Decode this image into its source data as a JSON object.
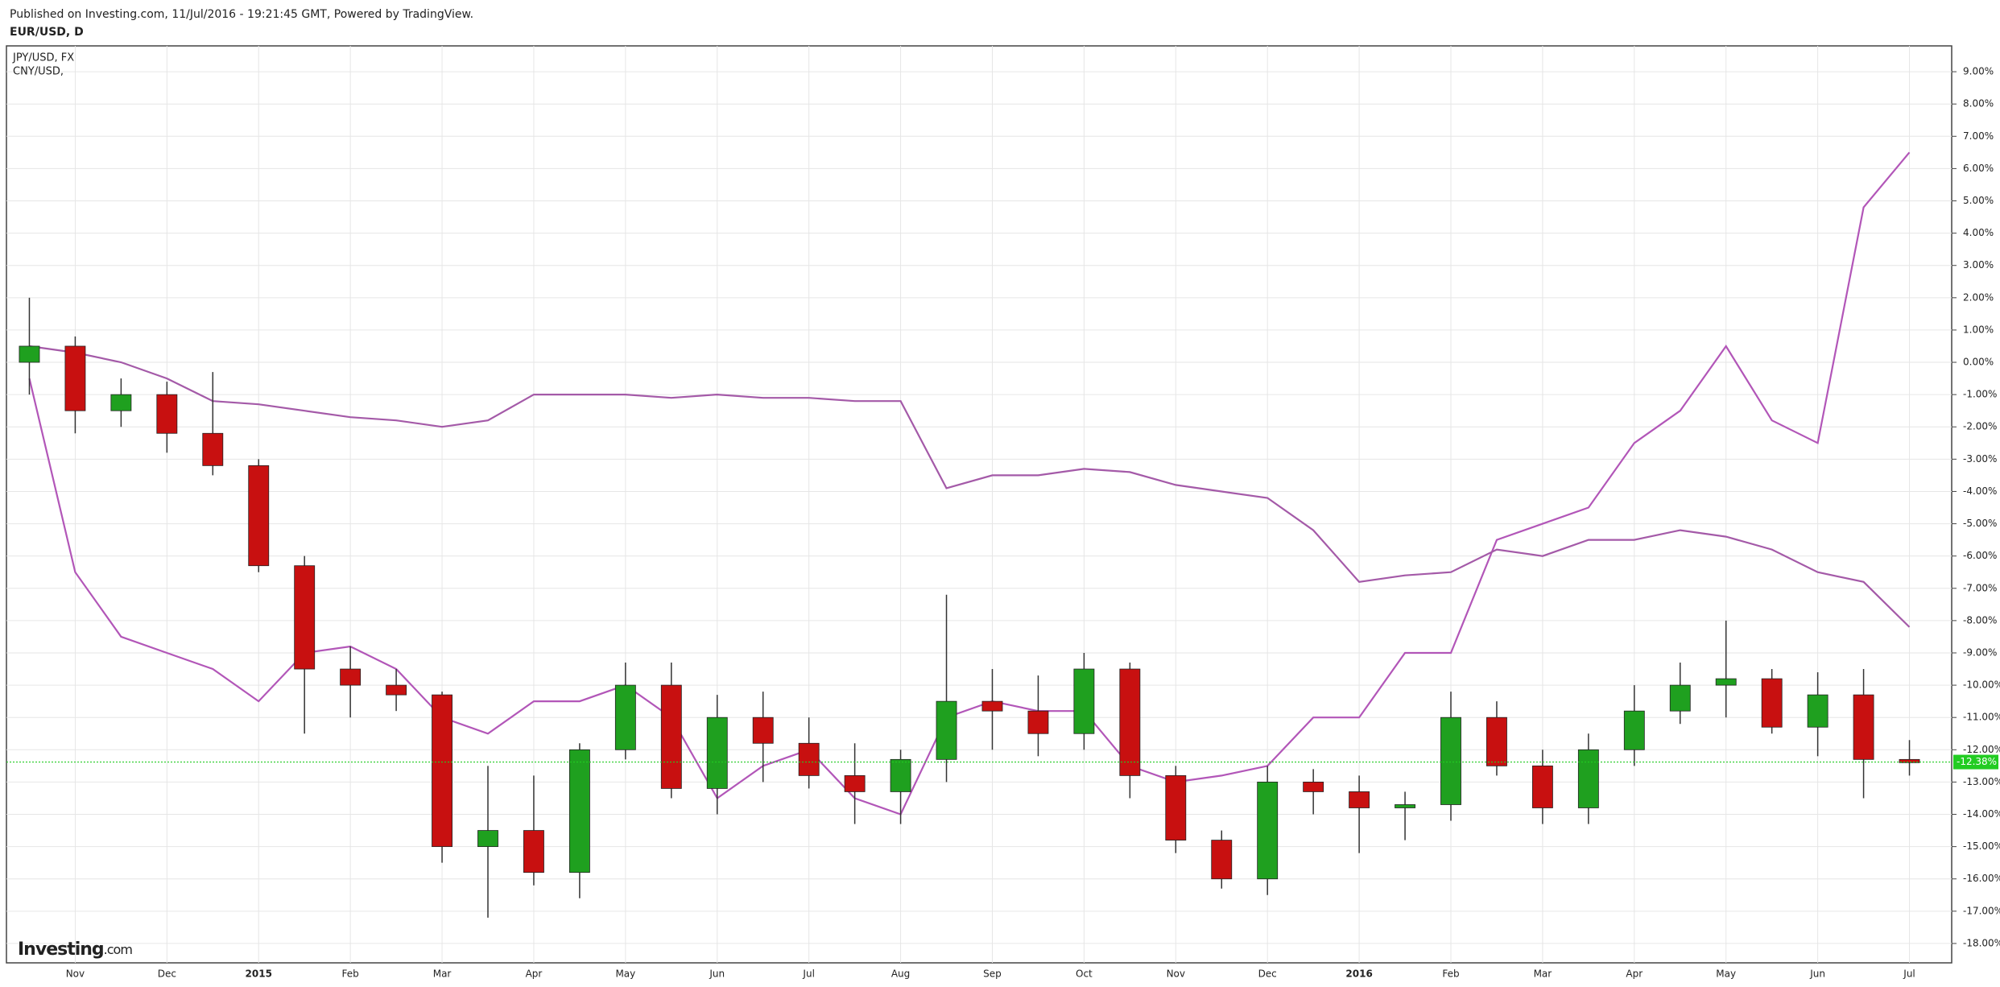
{
  "chart_data": {
    "type": "candlestick",
    "subtitle": "Published on Investing.com, 11/Jul/2016 - 19:21:45 GMT, Powered by TradingView.",
    "title": "EUR/USD, D",
    "categories": [
      null,
      "Nov",
      null,
      "Dec",
      null,
      "2015",
      null,
      "Feb",
      null,
      "Mar",
      null,
      "Apr",
      null,
      "May",
      null,
      "Jun",
      null,
      "Jul",
      null,
      "Aug",
      null,
      "Sep",
      null,
      "Oct",
      null,
      "Nov",
      null,
      "Dec",
      null,
      "2016",
      null,
      "Feb",
      null,
      "Mar",
      null,
      "Apr",
      null,
      "May",
      null,
      "Jun",
      null,
      "Jul"
    ],
    "open": [
      0,
      0.5,
      -1.5,
      -1.0,
      -2.2,
      -3.2,
      -6.3,
      -9.5,
      -10.0,
      -10.3,
      -15.0,
      -14.5,
      -15.8,
      -12.0,
      -10.0,
      -13.2,
      -11.0,
      -11.8,
      -12.8,
      -13.3,
      -12.3,
      -10.5,
      -10.8,
      -11.5,
      -9.5,
      -12.8,
      -14.8,
      -16.0,
      -13.0,
      -13.3,
      -13.8,
      -13.7,
      -11.0,
      -12.5,
      -13.8,
      -12.0,
      -10.8,
      -10.0,
      -9.8,
      -11.3,
      -10.3,
      -12.3
    ],
    "high": [
      2.0,
      0.8,
      -0.5,
      -0.6,
      -0.3,
      -3.0,
      -6.0,
      -8.8,
      -9.5,
      -10.2,
      -12.5,
      -12.8,
      -11.8,
      -9.3,
      -9.3,
      -10.3,
      -10.2,
      -11.0,
      -11.8,
      -12.0,
      -7.2,
      -9.5,
      -9.7,
      -9.0,
      -9.3,
      -12.5,
      -14.5,
      -12.5,
      -12.6,
      -12.8,
      -13.3,
      -10.2,
      -10.5,
      -12.0,
      -11.5,
      -10.0,
      -9.3,
      -8.0,
      -9.5,
      -9.6,
      -9.5,
      -11.7
    ],
    "low": [
      -1.0,
      -2.2,
      -2.0,
      -2.8,
      -3.5,
      -6.5,
      -11.5,
      -11.0,
      -10.8,
      -15.5,
      -17.2,
      -16.2,
      -16.6,
      -12.3,
      -13.5,
      -14.0,
      -13.0,
      -13.2,
      -14.3,
      -14.3,
      -13.0,
      -12.0,
      -12.2,
      -12.0,
      -13.5,
      -15.2,
      -16.3,
      -16.5,
      -14.0,
      -15.2,
      -14.8,
      -14.2,
      -12.8,
      -14.3,
      -14.3,
      -12.5,
      -11.2,
      -11.0,
      -11.5,
      -12.2,
      -13.5,
      -12.8
    ],
    "close": [
      0.5,
      -1.5,
      -1.0,
      -2.2,
      -3.2,
      -6.3,
      -9.5,
      -10.0,
      -10.3,
      -15.0,
      -14.5,
      -15.8,
      -12.0,
      -10.0,
      -13.2,
      -11.0,
      -11.8,
      -12.8,
      -13.3,
      -12.3,
      -10.5,
      -10.8,
      -11.5,
      -9.5,
      -12.8,
      -14.8,
      -16.0,
      -13.0,
      -13.3,
      -13.8,
      -13.7,
      -11.0,
      -12.5,
      -13.8,
      -12.0,
      -10.8,
      -10.0,
      -9.8,
      -11.3,
      -10.3,
      -12.3,
      -12.4
    ],
    "up_color": "#1fa01f",
    "down_color": "#c81010",
    "series": [
      {
        "name": "JPY/USD, FX",
        "color": "#b256b8",
        "values": [
          -0.5,
          -6.5,
          -8.5,
          -9.0,
          -9.5,
          -10.5,
          -9.0,
          -8.8,
          -9.5,
          -11.0,
          -11.5,
          -10.5,
          -10.5,
          -10.0,
          -11.0,
          -13.5,
          -12.5,
          -12.0,
          -13.5,
          -14.0,
          -11.0,
          -10.5,
          -10.8,
          -10.8,
          -12.5,
          -13.0,
          -12.8,
          -12.5,
          -11.0,
          -11.0,
          -9.0,
          -9.0,
          -5.5,
          -5.0,
          -4.5,
          -2.5,
          -1.5,
          0.5,
          -1.8,
          -2.5,
          4.8,
          6.5
        ]
      },
      {
        "name": "CNY/USD,",
        "color": "#a45aa8",
        "values": [
          0.5,
          0.3,
          0.0,
          -0.5,
          -1.2,
          -1.3,
          -1.5,
          -1.7,
          -1.8,
          -2.0,
          -1.8,
          -1.0,
          -1.0,
          -1.0,
          -1.1,
          -1.0,
          -1.1,
          -1.1,
          -1.2,
          -1.2,
          -3.9,
          -3.5,
          -3.5,
          -3.3,
          -3.4,
          -3.8,
          -4.0,
          -4.2,
          -5.2,
          -6.8,
          -6.6,
          -6.5,
          -5.8,
          -6.0,
          -5.5,
          -5.5,
          -5.2,
          -5.4,
          -5.8,
          -6.5,
          -6.8,
          -8.2
        ]
      }
    ],
    "last_value": {
      "value": -12.38,
      "label": "-12.38%"
    },
    "last_color": "#22cc22",
    "ylim": [
      -18.6,
      9.8
    ],
    "yticks": [
      {
        "value": 9,
        "label": "9.00%"
      },
      {
        "value": 8,
        "label": "8.00%"
      },
      {
        "value": 7,
        "label": "7.00%"
      },
      {
        "value": 6,
        "label": "6.00%"
      },
      {
        "value": 5,
        "label": "5.00%"
      },
      {
        "value": 4,
        "label": "4.00%"
      },
      {
        "value": 3,
        "label": "3.00%"
      },
      {
        "value": 2,
        "label": "2.00%"
      },
      {
        "value": 1,
        "label": "1.00%"
      },
      {
        "value": 0,
        "label": "0.00%"
      },
      {
        "value": -1,
        "label": "-1.00%"
      },
      {
        "value": -2,
        "label": "-2.00%"
      },
      {
        "value": -3,
        "label": "-3.00%"
      },
      {
        "value": -4,
        "label": "-4.00%"
      },
      {
        "value": -5,
        "label": "-5.00%"
      },
      {
        "value": -6,
        "label": "-6.00%"
      },
      {
        "value": -7,
        "label": "-7.00%"
      },
      {
        "value": -8,
        "label": "-8.00%"
      },
      {
        "value": -9,
        "label": "-9.00%"
      },
      {
        "value": -10,
        "label": "-10.00%"
      },
      {
        "value": -11,
        "label": "-11.00%"
      },
      {
        "value": -12,
        "label": "-12.00%"
      },
      {
        "value": -13,
        "label": "-13.00%"
      },
      {
        "value": -14,
        "label": "-14.00%"
      },
      {
        "value": -15,
        "label": "-15.00%"
      },
      {
        "value": -16,
        "label": "-16.00%"
      },
      {
        "value": -17,
        "label": "-17.00%"
      },
      {
        "value": -18,
        "label": "-18.00%"
      }
    ],
    "grid": true
  },
  "logo": {
    "brand": "Investing",
    "suffix": ".com"
  }
}
